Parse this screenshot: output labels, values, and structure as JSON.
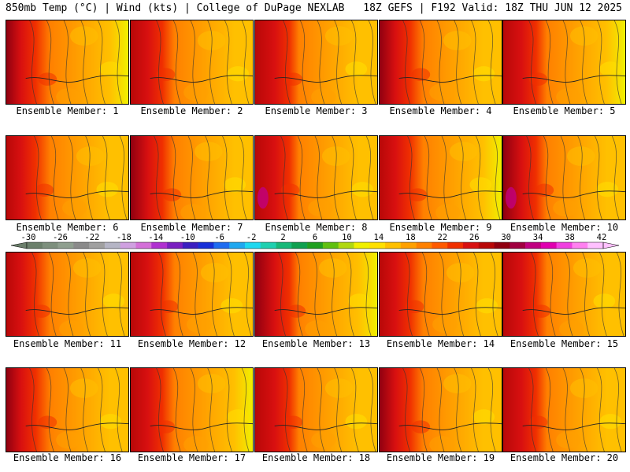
{
  "header": {
    "left": "850mb Temp (°C) | Wind (kts) | College of DuPage NEXLAB",
    "right": "18Z GEFS | F192 Valid: 18Z THU JUN 12 2025"
  },
  "panel_label_prefix": "Ensemble Member: ",
  "members": [
    "1",
    "2",
    "3",
    "4",
    "5",
    "6",
    "7",
    "8",
    "9",
    "10",
    "11",
    "12",
    "13",
    "14",
    "15",
    "16",
    "17",
    "18",
    "19",
    "20"
  ],
  "colorbar": {
    "tick_labels": [
      "-30",
      "-26",
      "-22",
      "-18",
      "-14",
      "-10",
      "-6",
      "-2",
      "2",
      "6",
      "10",
      "14",
      "18",
      "22",
      "26",
      "30",
      "34",
      "38",
      "42"
    ],
    "colors": [
      "#6b7f6b",
      "#7d8f7d",
      "#8f9f8f",
      "#8a8a8a",
      "#a0a0a0",
      "#b5b5c5",
      "#cfa0e0",
      "#d470d8",
      "#b030d0",
      "#7a1fc0",
      "#3b1fc0",
      "#1830d8",
      "#1f6cf0",
      "#20a8f0",
      "#20d8f0",
      "#20d0b0",
      "#18b878",
      "#10a050",
      "#20a020",
      "#60c010",
      "#b0d810",
      "#f0f000",
      "#ffe000",
      "#ffc000",
      "#ffa000",
      "#ff8000",
      "#ff5a00",
      "#f03000",
      "#d81010",
      "#b80808",
      "#900010",
      "#a00040",
      "#c00080",
      "#e000b0",
      "#f040e0",
      "#ff80f0",
      "#ffc0ff"
    ]
  }
}
